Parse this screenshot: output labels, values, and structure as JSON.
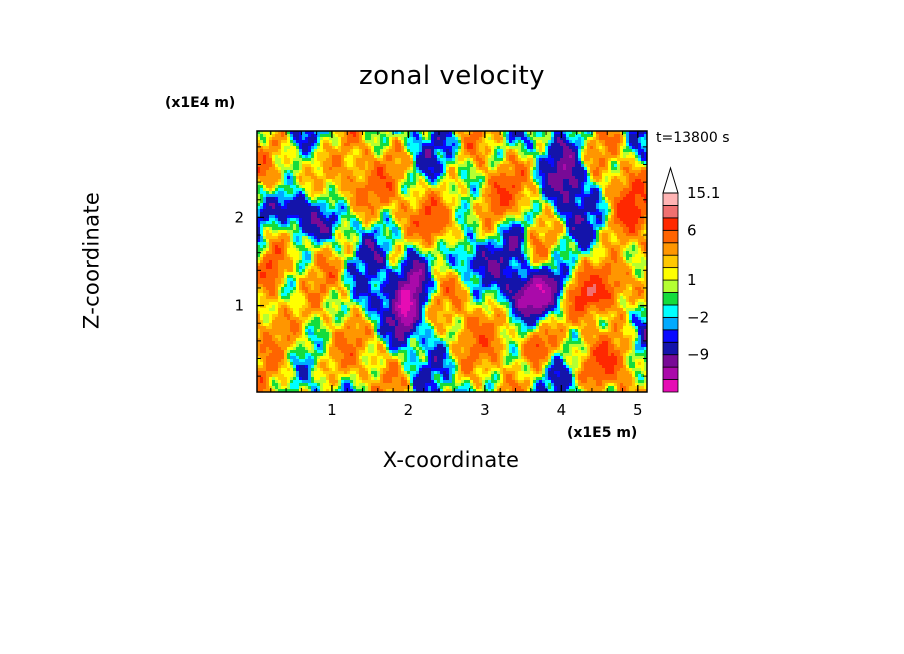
{
  "chart_data": {
    "type": "heatmap",
    "title": "zonal velocity",
    "xlabel": "X-coordinate",
    "ylabel": "Z-coordinate",
    "x_unit": "(x1E5 m)",
    "y_unit": "(x1E4 m)",
    "annotation": "t=13800 s",
    "xlim": [
      0.02,
      5.12
    ],
    "ylim": [
      0.02,
      2.98
    ],
    "x_ticks": [
      1,
      2,
      3,
      4,
      5
    ],
    "x_tick_labels": [
      "1",
      "2",
      "3",
      "4",
      "5"
    ],
    "y_ticks": [
      1,
      2
    ],
    "y_tick_labels": [
      "1",
      "2"
    ],
    "colorbar": {
      "levels": [
        -15,
        -12,
        -9,
        -6,
        -3,
        -2,
        -1,
        0,
        1,
        2,
        3,
        4,
        6,
        9,
        12,
        15.1
      ],
      "tick_values": [
        15.1,
        6,
        1,
        -2,
        -9
      ],
      "tick_labels": [
        "15.1",
        "6",
        "1",
        "−2",
        "−9"
      ],
      "colors": [
        "#e60cb4",
        "#aa0aaa",
        "#780a96",
        "#1414aa",
        "#0a0aff",
        "#00aaff",
        "#00ffff",
        "#14dc3c",
        "#b4ff32",
        "#ffff00",
        "#ffc800",
        "#ff9600",
        "#ff6400",
        "#ff2800",
        "#f07070",
        "#ffb4b4"
      ],
      "extend_top_color": "#ffffff"
    },
    "features": [
      {
        "x": 3.85,
        "z": 1.2,
        "value": -13,
        "sx": 0.32,
        "sz": 0.17
      },
      {
        "x": 3.6,
        "z": 1.05,
        "value": -9,
        "sx": 0.2,
        "sz": 0.12
      },
      {
        "x": 4.4,
        "z": 1.15,
        "value": 12,
        "sx": 0.32,
        "sz": 0.18
      },
      {
        "x": 4.7,
        "z": 1.4,
        "value": 6,
        "sx": 0.22,
        "sz": 0.2
      },
      {
        "x": 0.5,
        "z": 2.1,
        "value": -8,
        "sx": 0.25,
        "sz": 0.15
      },
      {
        "x": 0.75,
        "z": 1.9,
        "value": -6,
        "sx": 0.18,
        "sz": 0.12
      },
      {
        "x": 1.3,
        "z": 2.3,
        "value": 6,
        "sx": 0.3,
        "sz": 0.22
      },
      {
        "x": 2.1,
        "z": 1.35,
        "value": -9,
        "sx": 0.12,
        "sz": 0.3
      },
      {
        "x": 1.95,
        "z": 0.95,
        "value": -10,
        "sx": 0.1,
        "sz": 0.25
      },
      {
        "x": 2.4,
        "z": 2.0,
        "value": 7,
        "sx": 0.28,
        "sz": 0.25
      },
      {
        "x": 3.2,
        "z": 2.2,
        "value": 6,
        "sx": 0.25,
        "sz": 0.25
      },
      {
        "x": 2.8,
        "z": 1.5,
        "value": -4,
        "sx": 0.3,
        "sz": 0.15
      },
      {
        "x": 3.0,
        "z": 0.7,
        "value": 4,
        "sx": 0.4,
        "sz": 0.3
      },
      {
        "x": 4.9,
        "z": 2.1,
        "value": 7,
        "sx": 0.22,
        "sz": 0.3
      },
      {
        "x": 4.1,
        "z": 2.4,
        "value": -7,
        "sx": 0.15,
        "sz": 0.3
      },
      {
        "x": 0.3,
        "z": 0.8,
        "value": 6,
        "sx": 0.3,
        "sz": 0.3
      },
      {
        "x": 1.1,
        "z": 0.4,
        "value": 4,
        "sx": 0.3,
        "sz": 0.25
      },
      {
        "x": 1.55,
        "z": 1.05,
        "value": -4,
        "sx": 0.2,
        "sz": 0.2
      },
      {
        "x": 4.6,
        "z": 0.35,
        "value": 6,
        "sx": 0.3,
        "sz": 0.2
      },
      {
        "x": 3.7,
        "z": 0.55,
        "value": 9,
        "sx": 0.15,
        "sz": 0.15
      },
      {
        "x": 0.2,
        "z": 1.4,
        "value": 9,
        "sx": 0.15,
        "sz": 0.2
      },
      {
        "x": 3.4,
        "z": 1.8,
        "value": -6,
        "sx": 0.12,
        "sz": 0.2
      },
      {
        "x": 0.9,
        "z": 2.6,
        "value": 4,
        "sx": 0.4,
        "sz": 0.2
      }
    ]
  }
}
